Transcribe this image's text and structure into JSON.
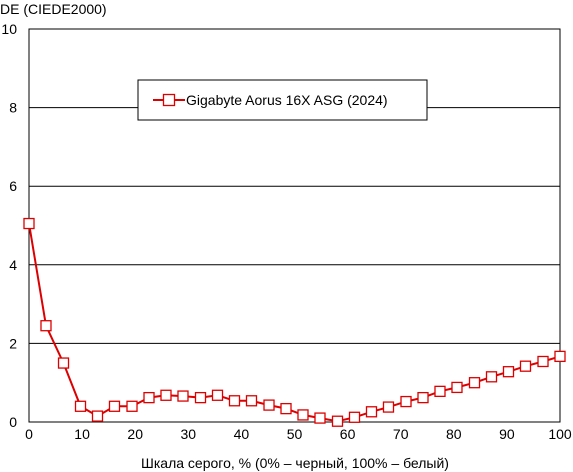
{
  "chart_data": {
    "type": "line",
    "title": "",
    "ylabel": "DE (CIEDE2000)",
    "xlabel": "Шкала серого, % (0% – черный, 100% – белый)",
    "xlim": [
      0,
      100
    ],
    "ylim": [
      0,
      10
    ],
    "x_ticks": [
      0,
      10,
      20,
      30,
      40,
      50,
      60,
      70,
      80,
      90,
      100
    ],
    "y_ticks": [
      0,
      2,
      4,
      6,
      8,
      10
    ],
    "grid": "horizontal",
    "legend_position": "top-center",
    "series": [
      {
        "name": "Gigabyte Aorus 16X ASG (2024)",
        "color": "#dd0000",
        "marker": "square-open",
        "x": [
          0,
          3.2,
          6.5,
          9.7,
          12.9,
          16.1,
          19.4,
          22.6,
          25.8,
          29.0,
          32.3,
          35.5,
          38.7,
          41.9,
          45.2,
          48.4,
          51.6,
          54.8,
          58.1,
          61.3,
          64.5,
          67.7,
          71.0,
          74.2,
          77.4,
          80.6,
          83.9,
          87.1,
          90.3,
          93.5,
          96.8,
          100
        ],
        "y": [
          5.05,
          2.45,
          1.5,
          0.4,
          0.15,
          0.4,
          0.4,
          0.62,
          0.68,
          0.66,
          0.62,
          0.68,
          0.54,
          0.54,
          0.43,
          0.34,
          0.18,
          0.1,
          0.02,
          0.12,
          0.26,
          0.38,
          0.52,
          0.62,
          0.78,
          0.88,
          1.0,
          1.15,
          1.28,
          1.42,
          1.54,
          1.67
        ]
      }
    ]
  }
}
